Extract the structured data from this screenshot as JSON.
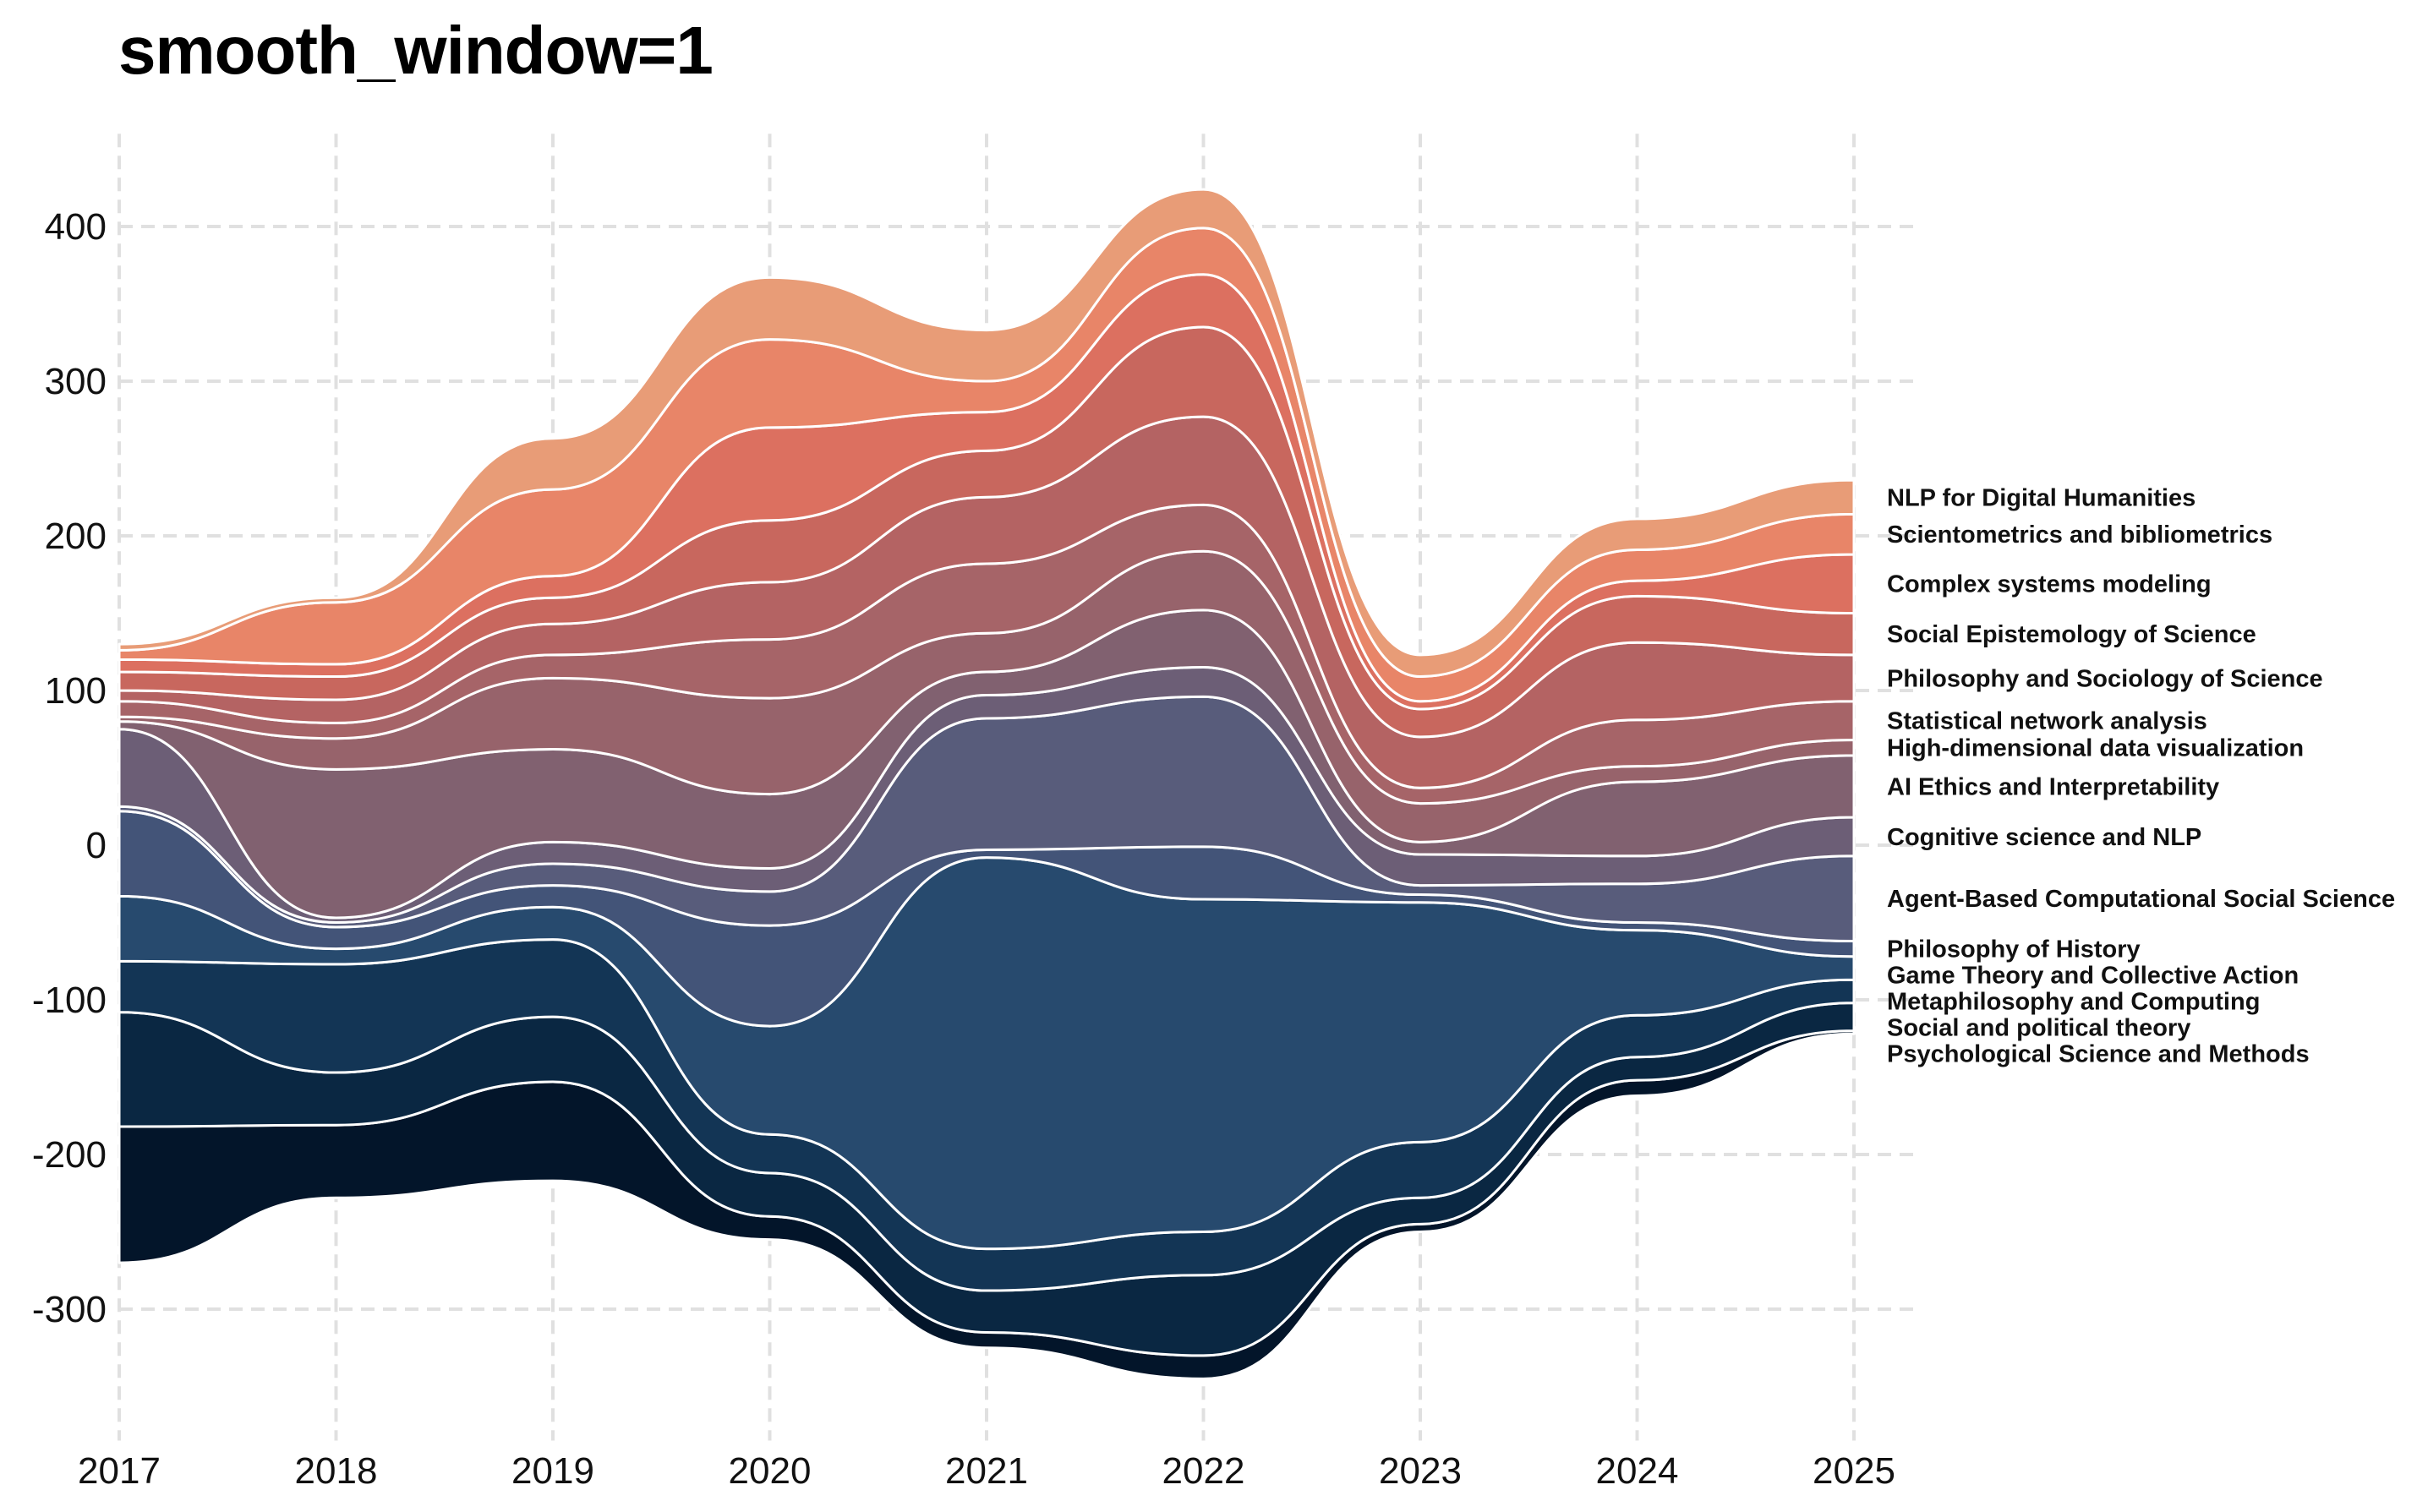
{
  "title": "smooth_window=1",
  "chart_data": {
    "type": "area",
    "subtype": "streamgraph",
    "title": "smooth_window=1",
    "xlabel": "",
    "ylabel": "",
    "x": [
      2017,
      2018,
      2019,
      2020,
      2021,
      2022,
      2023,
      2024,
      2025
    ],
    "x_ticks": [
      "2017",
      "2018",
      "2019",
      "2020",
      "2021",
      "2022",
      "2023",
      "2024",
      "2025"
    ],
    "y_ticks": [
      -300,
      -200,
      -100,
      0,
      100,
      200,
      300,
      400
    ],
    "ylim": [
      -385,
      460
    ],
    "xlim": [
      2017,
      2025.3
    ],
    "grid": true,
    "legend": "labels at right end of each layer",
    "baseline": [
      -270,
      -228,
      -217,
      -255,
      -325,
      -345,
      -250,
      -162,
      -122
    ],
    "series": [
      {
        "name": "Psychological Science and Methods",
        "color": "#03152a",
        "values": [
          88,
          47,
          64,
          15,
          10,
          15,
          5,
          10,
          2
        ]
      },
      {
        "name": "Social and political theory",
        "color": "#0a2742",
        "values": [
          74,
          34,
          42,
          28,
          27,
          52,
          17,
          15,
          18
        ]
      },
      {
        "name": "Metaphilosophy and Computing",
        "color": "#133555",
        "values": [
          33,
          70,
          50,
          25,
          27,
          28,
          36,
          27,
          15
        ]
      },
      {
        "name": "Game Theory and Collective Action",
        "color": "#274a6e",
        "values": [
          42,
          10,
          21,
          70,
          253,
          215,
          155,
          55,
          15
        ]
      },
      {
        "name": "Philosophy of History",
        "color": "#435478",
        "values": [
          55,
          14,
          14,
          65,
          5,
          34,
          5,
          5,
          10
        ]
      },
      {
        "name": "Agent-Based Computational Social Science",
        "color": "#585c7b",
        "values": [
          3,
          3,
          14,
          22,
          85,
          97,
          6,
          25,
          55
        ]
      },
      {
        "name": "Cognitive science and NLP",
        "color": "#6c5e76",
        "values": [
          50,
          3,
          14,
          15,
          15,
          19,
          20,
          18,
          25
        ]
      },
      {
        "name": "AI Ethics and Interpretability",
        "color": "#816170",
        "values": [
          5,
          96,
          60,
          48,
          15,
          37,
          8,
          48,
          40
        ]
      },
      {
        "name": "High-dimensional data visualization",
        "color": "#97636b",
        "values": [
          3,
          20,
          46,
          62,
          25,
          38,
          25,
          10,
          10
        ]
      },
      {
        "name": "Statistical network analysis",
        "color": "#a66468",
        "values": [
          10,
          10,
          15,
          38,
          45,
          30,
          10,
          30,
          25
        ]
      },
      {
        "name": "Philosophy and Sociology of Science",
        "color": "#b46363",
        "values": [
          7,
          15,
          20,
          37,
          43,
          57,
          33,
          50,
          30
        ]
      },
      {
        "name": "Social Epistemology of Science",
        "color": "#c8675e",
        "values": [
          12,
          15,
          17,
          40,
          30,
          58,
          18,
          30,
          27
        ]
      },
      {
        "name": "Complex systems modeling",
        "color": "#dc7060",
        "values": [
          8,
          8,
          14,
          60,
          25,
          34,
          5,
          10,
          38
        ]
      },
      {
        "name": "Scientometrics and bibliometrics",
        "color": "#e88568",
        "values": [
          6,
          40,
          56,
          57,
          20,
          30,
          16,
          20,
          26
        ]
      },
      {
        "name": "NLP for Digital Humanities",
        "color": "#e89c77",
        "values": [
          4,
          3,
          33,
          40,
          33,
          25,
          14,
          20,
          22
        ]
      }
    ]
  }
}
